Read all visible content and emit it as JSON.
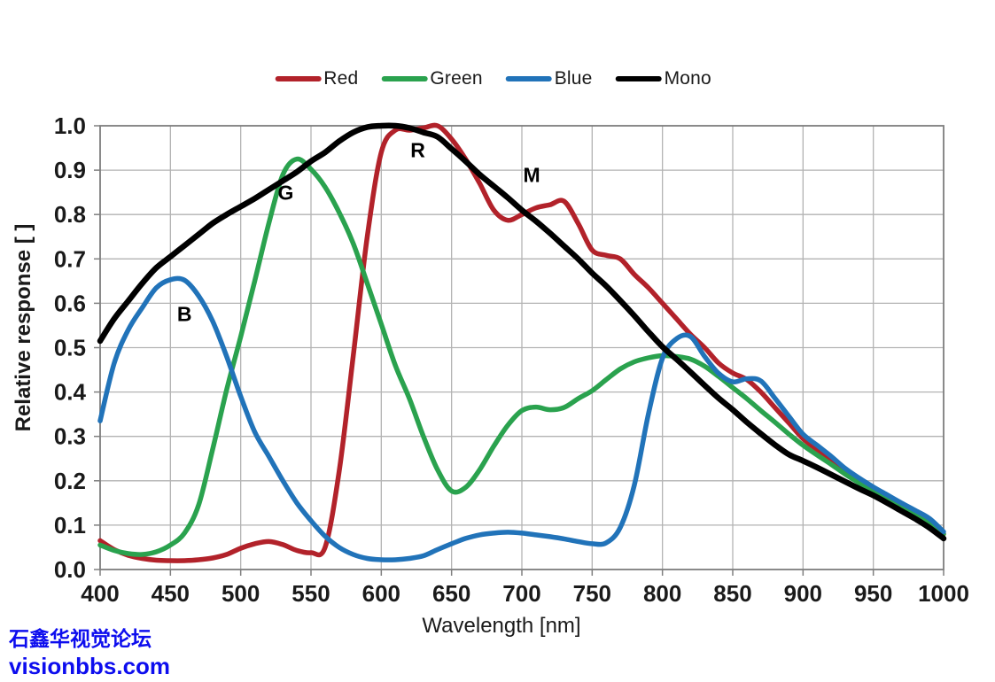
{
  "legend": {
    "items": [
      {
        "label": "Red",
        "color": "#b2222a"
      },
      {
        "label": "Green",
        "color": "#2aa24e"
      },
      {
        "label": "Blue",
        "color": "#2173b9"
      },
      {
        "label": "Mono",
        "color": "#000000"
      }
    ]
  },
  "axes": {
    "x": {
      "label": "Wavelength [nm]",
      "ticks": [
        400,
        450,
        500,
        550,
        600,
        650,
        700,
        750,
        800,
        850,
        900,
        950,
        1000
      ]
    },
    "y": {
      "label": "Relative response [ ]",
      "ticks": [
        "0.0",
        "0.1",
        "0.2",
        "0.3",
        "0.4",
        "0.5",
        "0.6",
        "0.7",
        "0.8",
        "0.9",
        "1.0"
      ]
    }
  },
  "curve_labels": [
    {
      "text": "B",
      "x_nm": 460,
      "y_val": 0.574
    },
    {
      "text": "G",
      "x_nm": 532,
      "y_val": 0.849
    },
    {
      "text": "R",
      "x_nm": 626,
      "y_val": 0.944
    },
    {
      "text": "M",
      "x_nm": 707,
      "y_val": 0.888
    }
  ],
  "watermark": {
    "line1": "石鑫华视觉论坛",
    "line2": "visionbbs.com",
    "color": "#0d0dee"
  },
  "chart_data": {
    "type": "line",
    "title": "",
    "xlabel": "Wavelength [nm]",
    "ylabel": "Relative response [ ]",
    "xlim": [
      400,
      1000
    ],
    "ylim": [
      0,
      1
    ],
    "grid": true,
    "legend_position": "top-center",
    "x": [
      400,
      410,
      420,
      430,
      440,
      450,
      460,
      470,
      480,
      490,
      500,
      510,
      520,
      530,
      540,
      550,
      560,
      570,
      580,
      590,
      600,
      610,
      620,
      630,
      640,
      650,
      660,
      670,
      680,
      690,
      700,
      710,
      720,
      730,
      740,
      750,
      760,
      770,
      780,
      790,
      800,
      810,
      820,
      830,
      840,
      850,
      860,
      870,
      880,
      890,
      900,
      910,
      920,
      930,
      940,
      950,
      960,
      970,
      980,
      990,
      1000
    ],
    "series": [
      {
        "name": "Red",
        "color": "#b2222a",
        "width": 5.5,
        "values": [
          0.065,
          0.045,
          0.032,
          0.025,
          0.021,
          0.02,
          0.02,
          0.022,
          0.026,
          0.034,
          0.048,
          0.058,
          0.063,
          0.056,
          0.043,
          0.038,
          0.05,
          0.22,
          0.48,
          0.75,
          0.94,
          0.99,
          0.99,
          0.995,
          1.0,
          0.97,
          0.925,
          0.87,
          0.81,
          0.787,
          0.8,
          0.815,
          0.822,
          0.83,
          0.78,
          0.72,
          0.708,
          0.7,
          0.665,
          0.635,
          0.6,
          0.565,
          0.53,
          0.5,
          0.465,
          0.443,
          0.428,
          0.4,
          0.365,
          0.33,
          0.295,
          0.27,
          0.245,
          0.22,
          0.2,
          0.18,
          0.162,
          0.145,
          0.128,
          0.11,
          0.08
        ]
      },
      {
        "name": "Green",
        "color": "#2aa24e",
        "width": 5.5,
        "values": [
          0.055,
          0.043,
          0.036,
          0.034,
          0.04,
          0.055,
          0.082,
          0.145,
          0.27,
          0.405,
          0.525,
          0.65,
          0.78,
          0.89,
          0.925,
          0.902,
          0.862,
          0.805,
          0.735,
          0.645,
          0.553,
          0.46,
          0.385,
          0.3,
          0.225,
          0.177,
          0.185,
          0.225,
          0.278,
          0.325,
          0.358,
          0.366,
          0.36,
          0.365,
          0.385,
          0.403,
          0.428,
          0.452,
          0.468,
          0.477,
          0.482,
          0.48,
          0.474,
          0.458,
          0.435,
          0.41,
          0.385,
          0.358,
          0.332,
          0.305,
          0.28,
          0.258,
          0.237,
          0.215,
          0.195,
          0.175,
          0.158,
          0.142,
          0.126,
          0.108,
          0.08
        ]
      },
      {
        "name": "Blue",
        "color": "#2173b9",
        "width": 5.5,
        "values": [
          0.335,
          0.465,
          0.54,
          0.59,
          0.635,
          0.653,
          0.652,
          0.617,
          0.56,
          0.48,
          0.39,
          0.31,
          0.255,
          0.2,
          0.15,
          0.11,
          0.075,
          0.05,
          0.034,
          0.025,
          0.022,
          0.022,
          0.025,
          0.031,
          0.045,
          0.058,
          0.07,
          0.078,
          0.082,
          0.084,
          0.082,
          0.078,
          0.074,
          0.069,
          0.063,
          0.058,
          0.06,
          0.095,
          0.19,
          0.35,
          0.476,
          0.52,
          0.525,
          0.48,
          0.442,
          0.423,
          0.43,
          0.425,
          0.386,
          0.345,
          0.305,
          0.28,
          0.255,
          0.228,
          0.206,
          0.186,
          0.168,
          0.15,
          0.133,
          0.115,
          0.085
        ]
      },
      {
        "name": "Mono",
        "color": "#000000",
        "width": 6.5,
        "values": [
          0.515,
          0.565,
          0.605,
          0.645,
          0.68,
          0.705,
          0.73,
          0.755,
          0.78,
          0.8,
          0.818,
          0.836,
          0.856,
          0.876,
          0.896,
          0.92,
          0.94,
          0.965,
          0.985,
          0.997,
          1.0,
          1.0,
          0.995,
          0.985,
          0.975,
          0.948,
          0.92,
          0.89,
          0.864,
          0.838,
          0.81,
          0.785,
          0.758,
          0.729,
          0.7,
          0.668,
          0.639,
          0.606,
          0.572,
          0.536,
          0.502,
          0.474,
          0.445,
          0.415,
          0.386,
          0.36,
          0.332,
          0.306,
          0.281,
          0.259,
          0.245,
          0.23,
          0.214,
          0.198,
          0.182,
          0.167,
          0.15,
          0.132,
          0.114,
          0.094,
          0.07
        ]
      }
    ]
  }
}
